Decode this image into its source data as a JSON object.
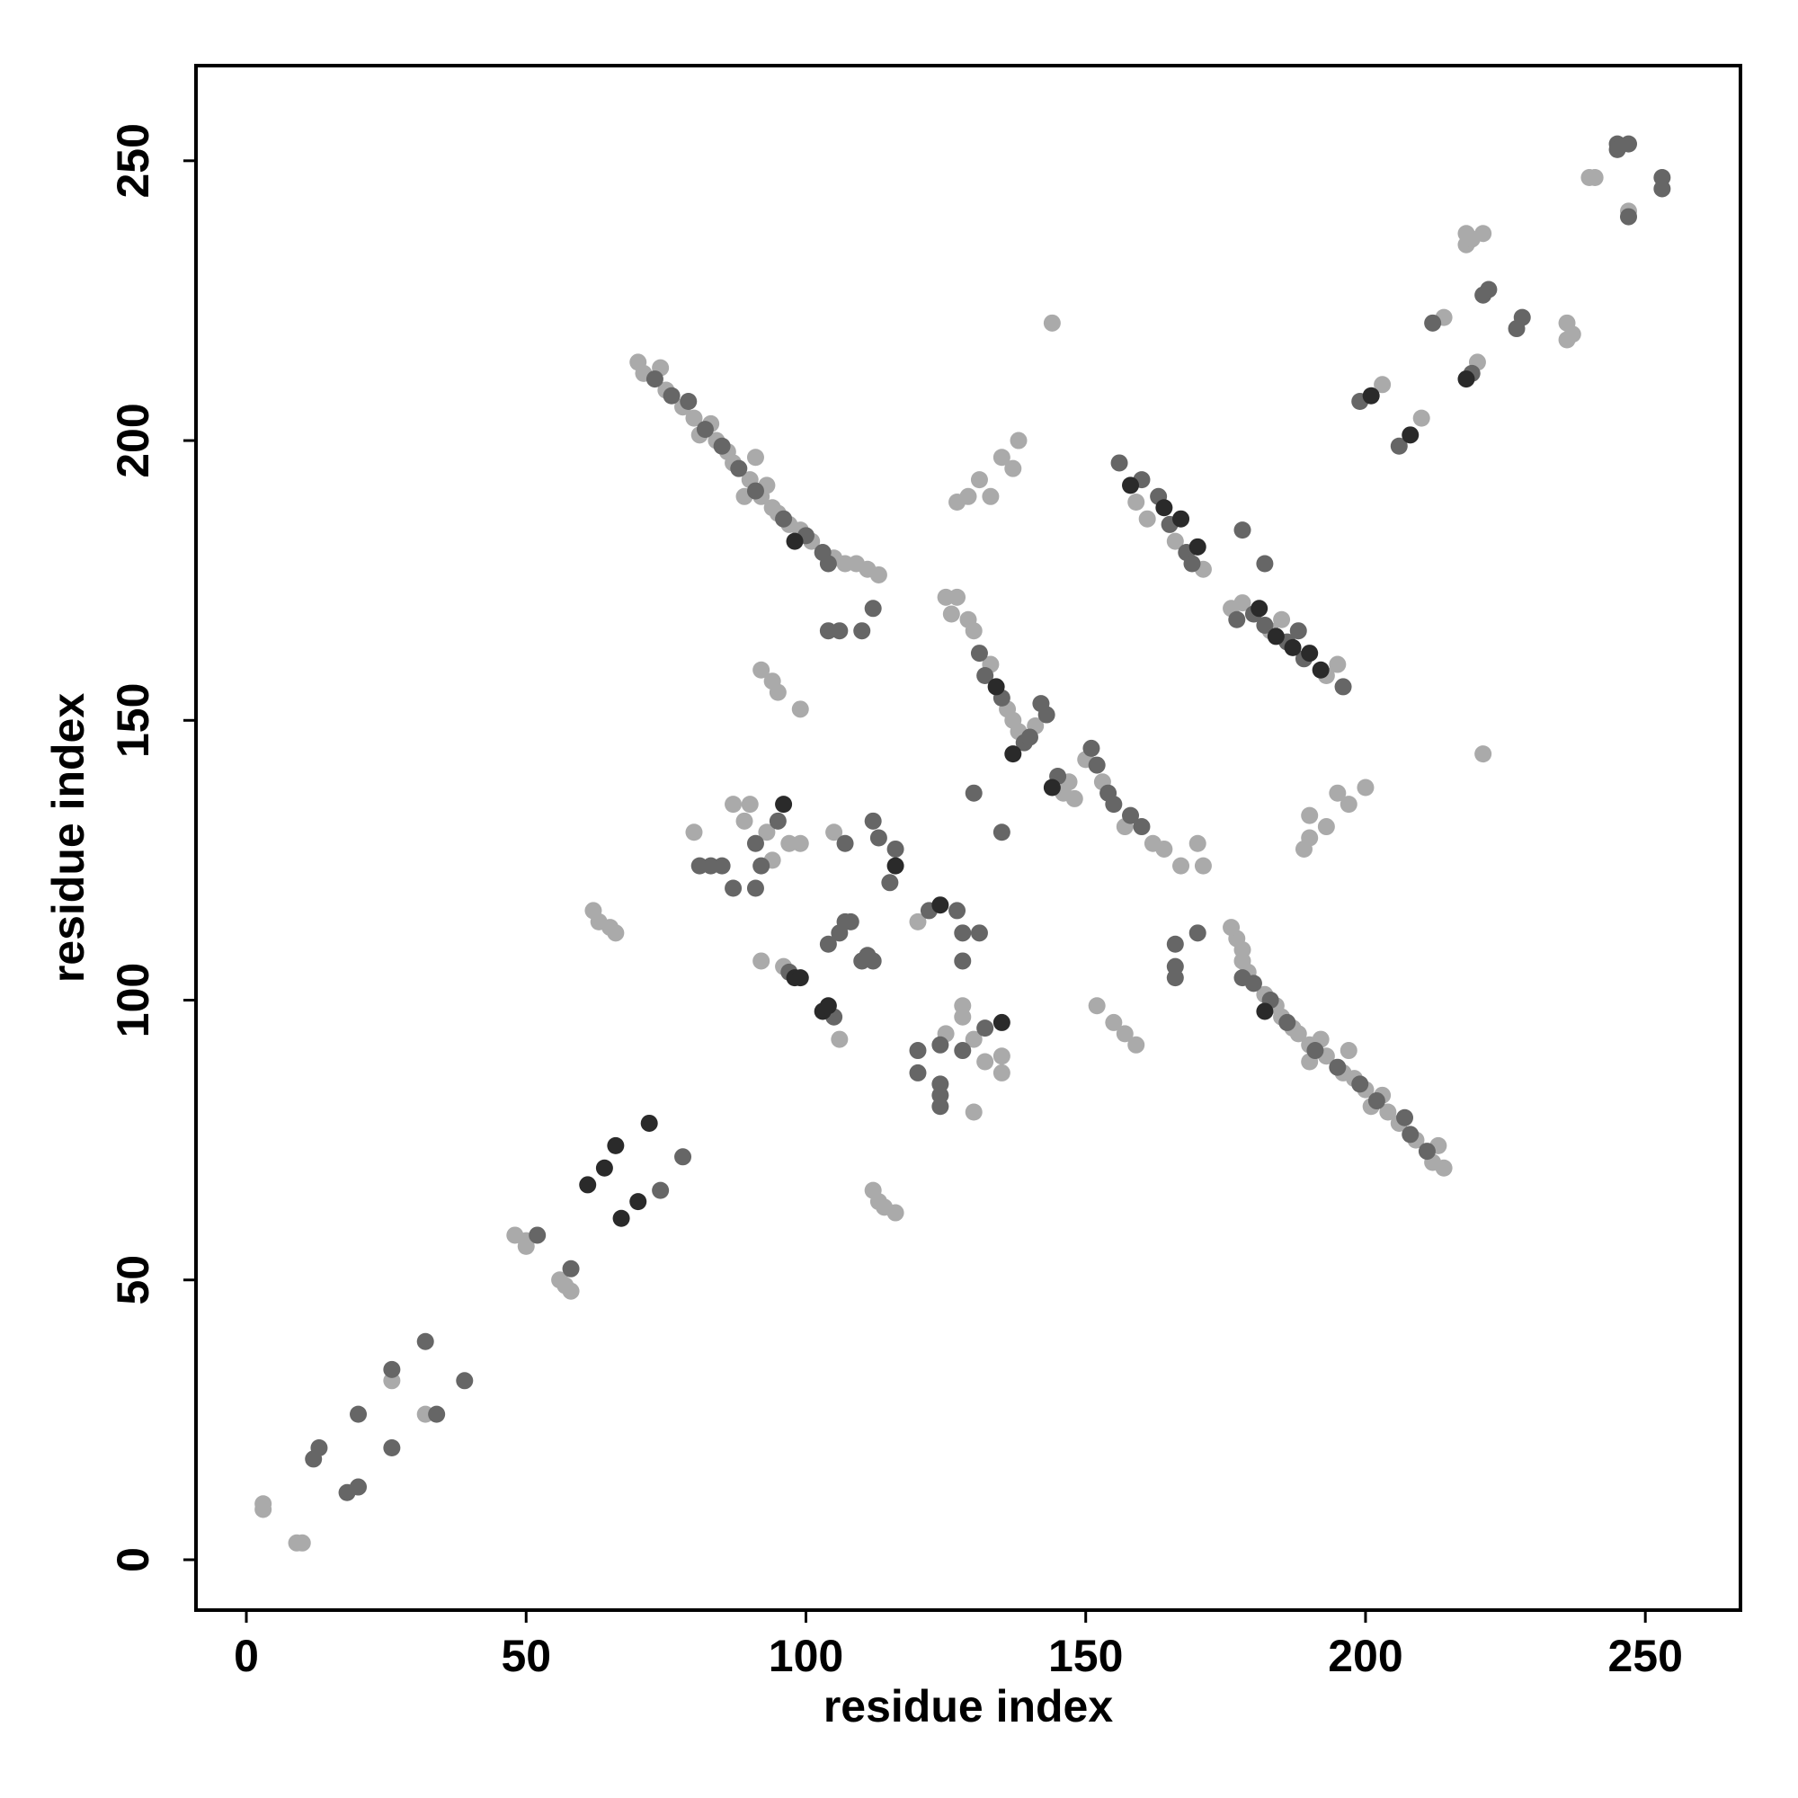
{
  "chart_data": {
    "type": "scatter",
    "xlabel": "residue index",
    "ylabel": "residue index",
    "xlim": [
      -9,
      267
    ],
    "ylim": [
      -9,
      267
    ],
    "xticks": [
      0,
      50,
      100,
      150,
      200,
      250
    ],
    "yticks": [
      0,
      50,
      100,
      150,
      200,
      250
    ],
    "grid": false,
    "series": [
      {
        "color": "#aaaaaa",
        "x": [
          3,
          3,
          9,
          10,
          26,
          32,
          48,
          50,
          50,
          56,
          58,
          57,
          240,
          241,
          247,
          218,
          221,
          218,
          219,
          236,
          237,
          236,
          214,
          220,
          203,
          210,
          70,
          71,
          75,
          78,
          80,
          83,
          84,
          86,
          87,
          90,
          92,
          93,
          94,
          95,
          97,
          99,
          101,
          105,
          107,
          109,
          111,
          113,
          89,
          81,
          74,
          91,
          214,
          212,
          209,
          206,
          204,
          203,
          200,
          198,
          196,
          193,
          190,
          192,
          188,
          187,
          185,
          184,
          182,
          179,
          178,
          178,
          177,
          176,
          190,
          201,
          213,
          197,
          80,
          87,
          89,
          90,
          93,
          94,
          97,
          99,
          130,
          135,
          132,
          135,
          130,
          125,
          128,
          128,
          125,
          127,
          129,
          130,
          133,
          136,
          137,
          138,
          141,
          146,
          147,
          148,
          150,
          153,
          157,
          162,
          164,
          167,
          170,
          171,
          126,
          159,
          161,
          166,
          171,
          176,
          178,
          183,
          185,
          193,
          195,
          144,
          221,
          92,
          94,
          95,
          99,
          159,
          157,
          155,
          152,
          127,
          129,
          131,
          133,
          135,
          137,
          138,
          189,
          190,
          193,
          190,
          197,
          195,
          200,
          62,
          63,
          65,
          66,
          116,
          114,
          113,
          112,
          106,
          105,
          120,
          92,
          96
        ],
        "y": [
          10,
          9,
          3,
          3,
          32,
          26,
          58,
          57,
          56,
          50,
          48,
          49,
          247,
          247,
          241,
          237,
          237,
          235,
          236,
          218,
          219,
          221,
          222,
          214,
          210,
          204,
          214,
          212,
          209,
          206,
          204,
          203,
          200,
          198,
          196,
          193,
          190,
          192,
          188,
          187,
          185,
          184,
          182,
          179,
          178,
          178,
          177,
          176,
          190,
          201,
          213,
          197,
          70,
          71,
          75,
          78,
          80,
          83,
          84,
          86,
          87,
          90,
          92,
          93,
          94,
          95,
          97,
          99,
          101,
          105,
          107,
          109,
          111,
          113,
          89,
          81,
          74,
          91,
          130,
          135,
          132,
          135,
          130,
          125,
          128,
          128,
          80,
          87,
          89,
          90,
          93,
          94,
          97,
          99,
          172,
          172,
          168,
          166,
          160,
          152,
          150,
          148,
          149,
          137,
          139,
          136,
          143,
          139,
          131,
          128,
          127,
          124,
          128,
          124,
          169,
          189,
          186,
          182,
          177,
          170,
          171,
          166,
          168,
          158,
          160,
          221,
          144,
          159,
          157,
          155,
          152,
          92,
          94,
          96,
          99,
          189,
          190,
          193,
          190,
          197,
          195,
          200,
          127,
          129,
          131,
          133,
          135,
          137,
          138,
          116,
          114,
          113,
          112,
          62,
          63,
          64,
          66,
          93,
          130,
          114,
          107,
          106
        ]
      },
      {
        "color": "#666666",
        "x": [
          12,
          13,
          18,
          20,
          20,
          26,
          26,
          32,
          34,
          39,
          52,
          58,
          74,
          78,
          245,
          247,
          245,
          253,
          253,
          247,
          222,
          221,
          228,
          227,
          212,
          219,
          199,
          206,
          73,
          76,
          79,
          82,
          85,
          88,
          91,
          96,
          100,
          103,
          104,
          211,
          208,
          207,
          202,
          199,
          195,
          191,
          186,
          183,
          180,
          178,
          81,
          83,
          85,
          87,
          91,
          92,
          95,
          91,
          124,
          124,
          124,
          120,
          128,
          124,
          132,
          120,
          131,
          132,
          135,
          139,
          140,
          142,
          143,
          145,
          151,
          152,
          154,
          155,
          158,
          160,
          130,
          135,
          156,
          160,
          163,
          165,
          168,
          169,
          177,
          180,
          182,
          186,
          188,
          189,
          196,
          178,
          182,
          104,
          106,
          110,
          112,
          166,
          166,
          166,
          170,
          97,
          105,
          104,
          106,
          107,
          108,
          110,
          111,
          112,
          115,
          116,
          112,
          113,
          107,
          122,
          127,
          128,
          131,
          128
        ],
        "y": [
          18,
          20,
          12,
          13,
          26,
          20,
          34,
          39,
          26,
          32,
          58,
          52,
          66,
          72,
          253,
          253,
          252,
          247,
          245,
          240,
          227,
          226,
          222,
          220,
          221,
          212,
          207,
          199,
          211,
          208,
          207,
          202,
          199,
          195,
          191,
          186,
          183,
          180,
          178,
          73,
          76,
          79,
          82,
          85,
          88,
          91,
          96,
          100,
          103,
          104,
          124,
          124,
          124,
          120,
          128,
          124,
          132,
          120,
          81,
          83,
          85,
          87,
          91,
          92,
          95,
          91,
          162,
          158,
          154,
          146,
          147,
          153,
          151,
          140,
          145,
          142,
          137,
          135,
          133,
          131,
          137,
          130,
          196,
          193,
          190,
          185,
          180,
          178,
          168,
          169,
          167,
          164,
          166,
          161,
          156,
          184,
          178,
          166,
          166,
          166,
          170,
          104,
          106,
          110,
          112,
          105,
          97,
          110,
          112,
          114,
          114,
          107,
          108,
          107,
          121,
          127,
          132,
          129,
          128,
          116,
          116,
          112,
          112,
          107
        ]
      },
      {
        "color": "#2a2a2a",
        "x": [
          61,
          64,
          66,
          72,
          67,
          70,
          201,
          208,
          218,
          98,
          182,
          96,
          135,
          134,
          137,
          144,
          158,
          164,
          167,
          170,
          181,
          184,
          187,
          190,
          192,
          98,
          99,
          103,
          104,
          116,
          124
        ],
        "y": [
          67,
          70,
          74,
          78,
          61,
          64,
          208,
          201,
          211,
          182,
          98,
          135,
          96,
          156,
          144,
          138,
          192,
          188,
          186,
          181,
          170,
          165,
          163,
          162,
          159,
          104,
          104,
          98,
          99,
          124,
          117
        ]
      }
    ]
  }
}
